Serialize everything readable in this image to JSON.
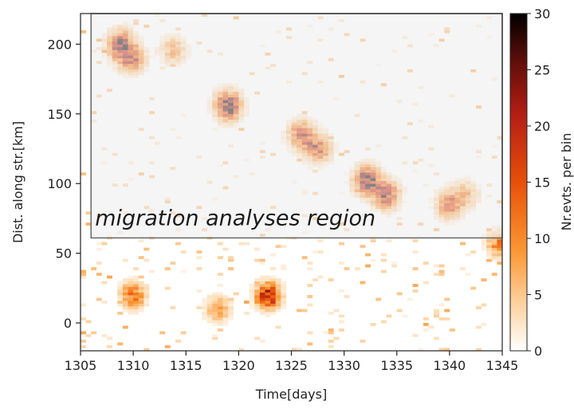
{
  "chart_data": {
    "type": "heatmap",
    "title": "",
    "xlabel": "Time[days]",
    "ylabel": "Dist. along str.[km]",
    "xlim": [
      1305,
      1345
    ],
    "ylim": [
      -20,
      222
    ],
    "x_ticks": [
      "1305",
      "1310",
      "1315",
      "1320",
      "1325",
      "1330",
      "1335",
      "1340",
      "1345"
    ],
    "y_ticks": [
      "0",
      "50",
      "100",
      "150",
      "200"
    ],
    "colorbar": {
      "label": "Nr.evts. per bin",
      "range": [
        0,
        30
      ],
      "ticks": [
        "0",
        "5",
        "10",
        "15",
        "20",
        "25",
        "30"
      ],
      "colormap": "gist_heat_r"
    },
    "highlight_region": {
      "label": "migration analyses region",
      "x_range": [
        1306,
        1345
      ],
      "y_range": [
        61,
        222
      ],
      "fill": "#ececec",
      "edge": "#666666"
    },
    "clusters": [
      {
        "x": 1308.8,
        "y": 200,
        "peak": 24
      },
      {
        "x": 1309.8,
        "y": 190,
        "peak": 20
      },
      {
        "x": 1313.8,
        "y": 196,
        "peak": 9
      },
      {
        "x": 1319.0,
        "y": 156,
        "peak": 30
      },
      {
        "x": 1326.0,
        "y": 135,
        "peak": 20
      },
      {
        "x": 1327.5,
        "y": 125,
        "peak": 18
      },
      {
        "x": 1332.2,
        "y": 102,
        "peak": 30
      },
      {
        "x": 1334.0,
        "y": 92,
        "peak": 22
      },
      {
        "x": 1340.0,
        "y": 85,
        "peak": 16
      },
      {
        "x": 1341.5,
        "y": 92,
        "peak": 9
      },
      {
        "x": 1322.8,
        "y": 20,
        "peak": 18
      },
      {
        "x": 1310.0,
        "y": 20,
        "peak": 12
      },
      {
        "x": 1318.0,
        "y": 10,
        "peak": 8
      },
      {
        "x": 1344.7,
        "y": 57,
        "peak": 10
      }
    ]
  }
}
